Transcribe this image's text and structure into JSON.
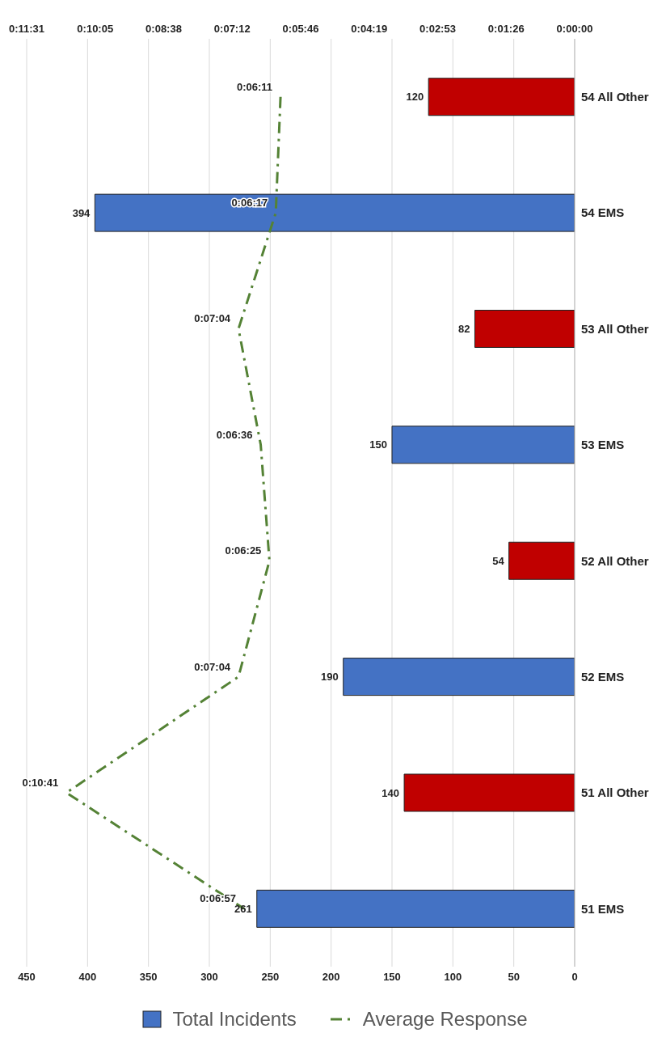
{
  "chart_data": {
    "type": "bar",
    "orientation": "horizontal",
    "categories": [
      "54 All Other",
      "54 EMS",
      "53 All Other",
      "53 EMS",
      "52 All Other",
      "52 EMS",
      "51 All Other",
      "51 EMS"
    ],
    "series": [
      {
        "name": "Total Incidents",
        "color": "#4472c4",
        "colors": [
          "#c00000",
          "#4472c4",
          "#c00000",
          "#4472c4",
          "#c00000",
          "#4472c4",
          "#c00000",
          "#4472c4"
        ],
        "values": [
          120,
          394,
          82,
          150,
          54,
          190,
          140,
          261
        ],
        "data_labels": true
      },
      {
        "name": "Average Response",
        "type": "line",
        "axis": "x2",
        "color": "#548235",
        "line_style": "dashed",
        "values": [
          6.1833,
          6.2833,
          7.0667,
          6.6,
          6.4167,
          7.0667,
          10.6833,
          6.95
        ],
        "value_labels": [
          "0:06:11",
          "0:06:17",
          "0:07:04",
          "0:06:36",
          "0:06:25",
          "0:07:04",
          "0:10:41",
          "0:06:57"
        ]
      }
    ],
    "xlim": [
      450,
      0
    ],
    "xticks": [
      450,
      400,
      350,
      300,
      250,
      200,
      150,
      100,
      50,
      0
    ],
    "x2lim": [
      11.52,
      0
    ],
    "x2ticks": [
      {
        "value": 11.52,
        "label": "0:11:31"
      },
      {
        "value": 10.08,
        "label": "0:10:05"
      },
      {
        "value": 8.64,
        "label": "0:08:38"
      },
      {
        "value": 7.2,
        "label": "0:07:12"
      },
      {
        "value": 5.76,
        "label": "0:05:46"
      },
      {
        "value": 4.32,
        "label": "0:04:19"
      },
      {
        "value": 2.88,
        "label": "0:02:53"
      },
      {
        "value": 1.44,
        "label": "0:01:26"
      },
      {
        "value": 0,
        "label": "0:00:00"
      }
    ],
    "grid": "x",
    "legend": "bottom"
  }
}
